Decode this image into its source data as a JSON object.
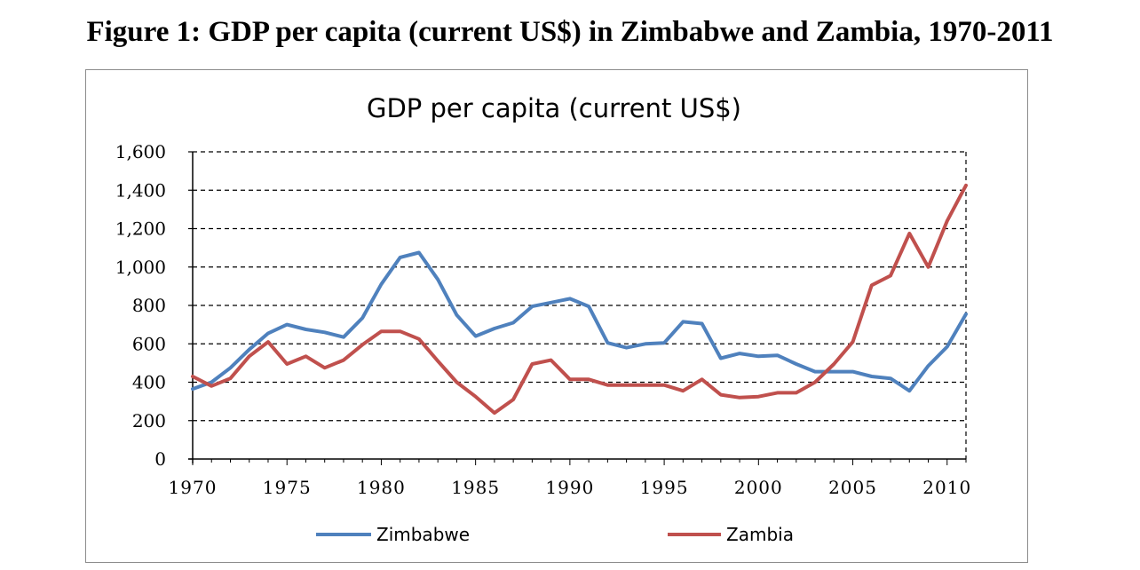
{
  "figure_title": "Figure 1: GDP per capita (current US$) in Zimbabwe and Zambia, 1970-2011",
  "colors": {
    "zimbabwe": "#4f81bd",
    "zambia": "#c0504d",
    "gridline": "#000000"
  },
  "chart_data": {
    "type": "line",
    "title": "GDP per capita (current US$)",
    "xlabel": "",
    "ylabel": "",
    "xlim": [
      1970,
      2011
    ],
    "ylim": [
      0,
      1600
    ],
    "grid": "horizontal dashed",
    "legend_placement": "bottom",
    "x_ticks": [
      "1970",
      "1975",
      "1980",
      "1985",
      "1990",
      "1995",
      "2000",
      "2005",
      "2010"
    ],
    "y_ticks": [
      "0",
      "200",
      "400",
      "600",
      "800",
      "1,000",
      "1,200",
      "1,400",
      "1,600"
    ],
    "x": [
      1970,
      1971,
      1972,
      1973,
      1974,
      1975,
      1976,
      1977,
      1978,
      1979,
      1980,
      1981,
      1982,
      1983,
      1984,
      1985,
      1986,
      1987,
      1988,
      1989,
      1990,
      1991,
      1992,
      1993,
      1994,
      1995,
      1996,
      1997,
      1998,
      1999,
      2000,
      2001,
      2002,
      2003,
      2004,
      2005,
      2006,
      2007,
      2008,
      2009,
      2010,
      2011
    ],
    "series": [
      {
        "name": "Zimbabwe",
        "values": [
          365,
          400,
          475,
          570,
          655,
          700,
          675,
          660,
          635,
          735,
          910,
          1050,
          1075,
          935,
          750,
          640,
          680,
          710,
          795,
          815,
          835,
          795,
          605,
          580,
          600,
          605,
          715,
          705,
          525,
          550,
          535,
          540,
          495,
          455,
          455,
          455,
          430,
          420,
          355,
          485,
          585,
          755
        ]
      },
      {
        "name": "Zambia",
        "values": [
          430,
          380,
          420,
          535,
          610,
          495,
          535,
          475,
          515,
          595,
          665,
          665,
          625,
          510,
          400,
          325,
          240,
          310,
          495,
          515,
          415,
          415,
          385,
          385,
          385,
          385,
          355,
          415,
          335,
          320,
          325,
          345,
          345,
          400,
          495,
          610,
          905,
          955,
          1175,
          1000,
          1240,
          1425
        ]
      }
    ]
  }
}
